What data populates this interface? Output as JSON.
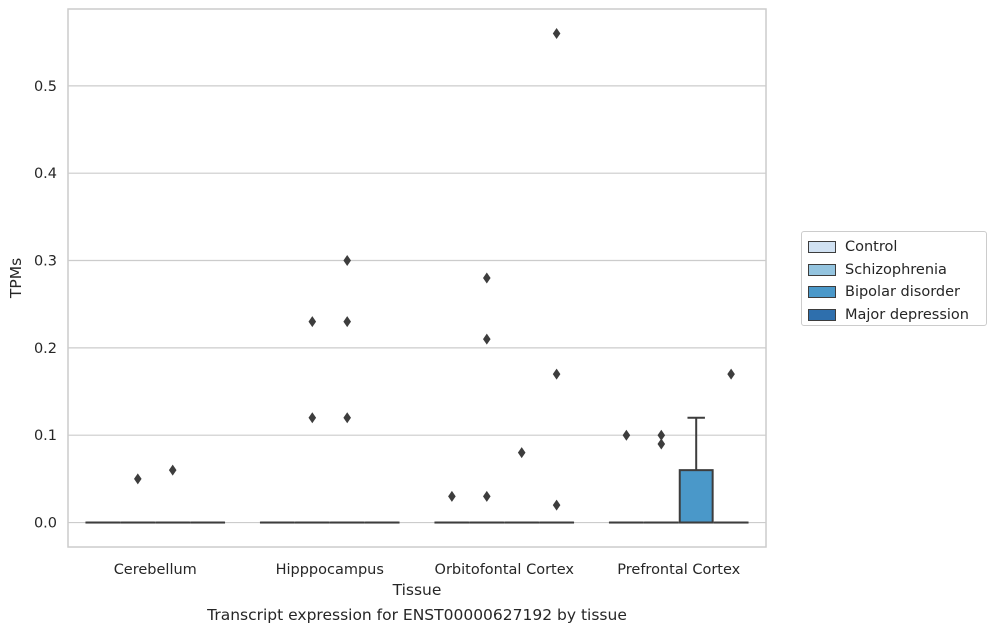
{
  "caption": "Transcript expression for ENST00000627192 by tissue",
  "chart_data": {
    "type": "box",
    "xlabel": "Tissue",
    "ylabel": "TPMs",
    "ylim": [
      -0.028,
      0.588
    ],
    "yticks": [
      0.0,
      0.1,
      0.2,
      0.3,
      0.4,
      0.5
    ],
    "ytick_labels": [
      "0.0",
      "0.1",
      "0.2",
      "0.3",
      "0.4",
      "0.5"
    ],
    "grid": "horizontal",
    "legend_position": "right",
    "categories": [
      "Cerebellum",
      "Hipppocampus",
      "Orbitofontal Cortex",
      "Prefrontal Cortex"
    ],
    "series": [
      {
        "name": "Control",
        "color": "#d0e1f2",
        "boxes": [
          {
            "q1": 0,
            "median": 0,
            "q3": 0,
            "whisker_low": 0,
            "whisker_high": 0,
            "outliers": []
          },
          {
            "q1": 0,
            "median": 0,
            "q3": 0,
            "whisker_low": 0,
            "whisker_high": 0,
            "outliers": []
          },
          {
            "q1": 0,
            "median": 0,
            "q3": 0,
            "whisker_low": 0,
            "whisker_high": 0,
            "outliers": [
              0.03
            ]
          },
          {
            "q1": 0,
            "median": 0,
            "q3": 0,
            "whisker_low": 0,
            "whisker_high": 0,
            "outliers": [
              0.1
            ]
          }
        ]
      },
      {
        "name": "Schizophrenia",
        "color": "#94c4df",
        "boxes": [
          {
            "q1": 0,
            "median": 0,
            "q3": 0,
            "whisker_low": 0,
            "whisker_high": 0,
            "outliers": [
              0.05
            ]
          },
          {
            "q1": 0,
            "median": 0,
            "q3": 0,
            "whisker_low": 0,
            "whisker_high": 0,
            "outliers": [
              0.12,
              0.23
            ]
          },
          {
            "q1": 0,
            "median": 0,
            "q3": 0,
            "whisker_low": 0,
            "whisker_high": 0,
            "outliers": [
              0.03,
              0.21,
              0.28
            ]
          },
          {
            "q1": 0,
            "median": 0,
            "q3": 0,
            "whisker_low": 0,
            "whisker_high": 0,
            "outliers": [
              0.09,
              0.1
            ]
          }
        ]
      },
      {
        "name": "Bipolar disorder",
        "color": "#4a98c9",
        "boxes": [
          {
            "q1": 0,
            "median": 0,
            "q3": 0,
            "whisker_low": 0,
            "whisker_high": 0,
            "outliers": [
              0.06
            ]
          },
          {
            "q1": 0,
            "median": 0,
            "q3": 0,
            "whisker_low": 0,
            "whisker_high": 0,
            "outliers": [
              0.12,
              0.23,
              0.3
            ]
          },
          {
            "q1": 0,
            "median": 0,
            "q3": 0,
            "whisker_low": 0,
            "whisker_high": 0,
            "outliers": [
              0.08
            ]
          },
          {
            "q1": 0,
            "median": 0,
            "q3": 0.06,
            "whisker_low": 0,
            "whisker_high": 0.12,
            "outliers": []
          }
        ]
      },
      {
        "name": "Major depression",
        "color": "#2e6fad",
        "boxes": [
          {
            "q1": 0,
            "median": 0,
            "q3": 0,
            "whisker_low": 0,
            "whisker_high": 0,
            "outliers": []
          },
          {
            "q1": 0,
            "median": 0,
            "q3": 0,
            "whisker_low": 0,
            "whisker_high": 0,
            "outliers": []
          },
          {
            "q1": 0,
            "median": 0,
            "q3": 0,
            "whisker_low": 0,
            "whisker_high": 0,
            "outliers": [
              0.02,
              0.17,
              0.56
            ]
          },
          {
            "q1": 0,
            "median": 0,
            "q3": 0,
            "whisker_low": 0,
            "whisker_high": 0,
            "outliers": [
              0.17
            ]
          }
        ]
      }
    ]
  }
}
